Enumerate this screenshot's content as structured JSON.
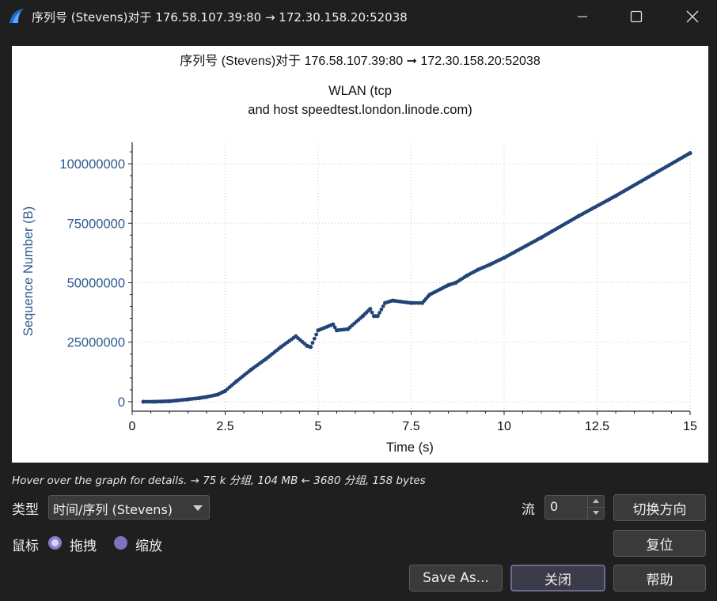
{
  "window": {
    "title": "序列号 (Stevens)对于 176.58.107.39:80 → 172.30.158.20:52038"
  },
  "icons": {
    "app": "wireshark-fin-icon",
    "minimize": "minimize-icon",
    "maximize": "maximize-icon",
    "close": "close-icon"
  },
  "graph": {
    "title_line1": "序列号 (Stevens)对于 176.58.107.39:80 ➞ 172.30.158.20:52038",
    "title_line2": "WLAN (tcp",
    "title_line3": "and host speedtest.london.linode.com)"
  },
  "chart_data": {
    "type": "scatter",
    "title": "序列号 (Stevens)对于 176.58.107.39:80 ➞ 172.30.158.20:52038",
    "subtitle": "WLAN (tcp and host speedtest.london.linode.com)",
    "xlabel": "Time (s)",
    "ylabel": "Sequence Number (B)",
    "xlim": [
      0,
      15
    ],
    "ylim": [
      -4000000,
      109000000
    ],
    "x_ticks": [
      0,
      2.5,
      5,
      7.5,
      10,
      12.5,
      15
    ],
    "x_tick_labels": [
      "0",
      "2.5",
      "5",
      "7.5",
      "10",
      "12.5",
      "15"
    ],
    "y_ticks": [
      0,
      25000000,
      50000000,
      75000000,
      100000000
    ],
    "y_tick_labels": [
      "0",
      "25000000",
      "50000000",
      "75000000",
      "100000000"
    ],
    "grid": true,
    "color": "#224477",
    "series": [
      {
        "x": [
          0.3,
          0.6,
          0.8,
          1.0,
          1.2,
          1.5,
          1.8,
          2.0,
          2.3,
          2.5,
          2.8,
          3.2,
          3.6,
          4.0,
          4.4,
          4.7,
          4.8,
          5.0,
          5.4,
          5.5,
          5.8,
          6.2,
          6.4,
          6.5,
          6.6,
          6.8,
          7.0,
          7.5,
          7.8,
          8.0,
          8.5,
          8.7,
          9.0,
          9.3,
          9.6,
          10.0,
          11.0,
          12.0,
          13.0,
          14.0,
          15.0
        ],
        "y": [
          0,
          0,
          100000,
          200000,
          500000,
          1000000,
          1500000,
          2000000,
          3000000,
          4500000,
          8500000,
          13500000,
          18000000,
          23000000,
          27500000,
          23500000,
          23000000,
          30000000,
          32500000,
          30000000,
          30500000,
          36000000,
          39000000,
          36000000,
          36000000,
          41500000,
          42500000,
          41500000,
          41500000,
          45000000,
          49000000,
          50000000,
          53000000,
          55500000,
          57500000,
          60500000,
          69000000,
          78000000,
          86500000,
          95500000,
          104500000
        ]
      }
    ]
  },
  "hint": "Hover over the graph for details. → 75 k 分组, 104 MB ← 3680 分组, 158 bytes",
  "controls": {
    "type_label": "类型",
    "type_value": "时间/序列 (Stevens)",
    "stream_label": "流",
    "stream_value": "0",
    "switch_direction": "切换方向",
    "mouse_label": "鼠标",
    "drag_label": "拖拽",
    "zoom_label": "缩放",
    "reset": "复位",
    "save_as": "Save As...",
    "close": "关闭",
    "help": "帮助"
  }
}
